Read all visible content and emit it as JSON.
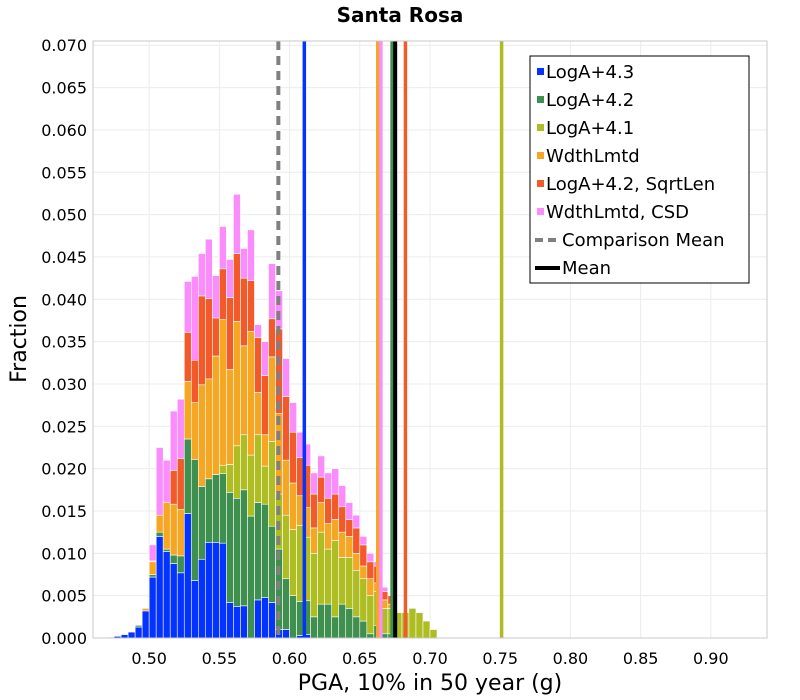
{
  "chart_data": {
    "type": "bar",
    "stacked": true,
    "title": "Santa Rosa",
    "xlabel": "PGA, 10% in 50 year (g)",
    "ylabel": "Fraction",
    "xlim": [
      0.46,
      0.94
    ],
    "ylim": [
      0.0,
      0.0705
    ],
    "x_ticks": [
      "0.50",
      "0.55",
      "0.60",
      "0.65",
      "0.70",
      "0.75",
      "0.80",
      "0.85",
      "0.90"
    ],
    "y_ticks": [
      "0.000",
      "0.005",
      "0.010",
      "0.015",
      "0.020",
      "0.025",
      "0.030",
      "0.035",
      "0.040",
      "0.045",
      "0.050",
      "0.055",
      "0.060",
      "0.065",
      "0.070"
    ],
    "legend_position": "top-right",
    "bin_start": 0.465,
    "bin_width": 0.005,
    "series": [
      {
        "name": "LogA+4.3",
        "color": "#0433ff",
        "values": [
          0.0,
          0.0001,
          0.0002,
          0.0004,
          0.0007,
          0.0013,
          0.0032,
          0.0072,
          0.012,
          0.0102,
          0.0088,
          0.0077,
          0.0147,
          0.0068,
          0.0093,
          0.0113,
          0.0113,
          0.0112,
          0.0042,
          0.0037,
          0.0038,
          0.0,
          0.0045,
          0.0048,
          0.0042,
          0.001,
          0.001,
          0.0,
          0.0003,
          0.0004,
          0.0,
          0.0,
          0.0,
          0.0,
          0.0,
          0.0,
          0.0,
          0.0,
          0.0,
          0.0,
          0.0,
          0.0,
          0.0,
          0.0,
          0.0,
          0.0,
          0.0,
          0.0
        ]
      },
      {
        "name": "LogA+4.2",
        "color": "#3f8f4f",
        "values": [
          0.0,
          0.0,
          0.0,
          0.0,
          0.0,
          0.0002,
          0.0,
          0.0003,
          0.0005,
          0.0003,
          0.001,
          0.002,
          0.0088,
          0.0143,
          0.0086,
          0.0075,
          0.008,
          0.0082,
          0.013,
          0.0128,
          0.0137,
          0.0144,
          0.0115,
          0.011,
          0.009,
          0.0095,
          0.006,
          0.005,
          0.004,
          0.004,
          0.0025,
          0.004,
          0.004,
          0.0025,
          0.004,
          0.0035,
          0.0025,
          0.002,
          0.0005,
          0.0015,
          0.0005,
          0.0005,
          0.0,
          0.0,
          0.0,
          0.0,
          0.0,
          0.0
        ]
      },
      {
        "name": "LogA+4.1",
        "color": "#adbd22",
        "values": [
          0.0,
          0.0,
          0.0,
          0.0,
          0.0,
          0.0,
          0.0,
          0.0,
          0.0,
          0.0,
          0.0,
          0.0,
          0.0,
          0.0,
          0.0,
          0.0,
          0.0,
          0.001,
          0.0033,
          0.0062,
          0.0065,
          0.0072,
          0.008,
          0.0045,
          0.01,
          0.0065,
          0.0075,
          0.0078,
          0.009,
          0.0075,
          0.0075,
          0.0085,
          0.0065,
          0.009,
          0.0055,
          0.006,
          0.0055,
          0.005,
          0.0045,
          0.004,
          0.003,
          0.003,
          0.003,
          0.003,
          0.0035,
          0.003,
          0.002,
          0.001
        ]
      },
      {
        "name": "WdthLmtd",
        "color": "#f5a623",
        "values": [
          0.0,
          0.0,
          0.0,
          0.0,
          0.0,
          0.0,
          0.0003,
          0.0015,
          0.002,
          0.0055,
          0.006,
          0.0055,
          0.0068,
          0.0067,
          0.012,
          0.0118,
          0.014,
          0.0172,
          0.0112,
          0.0147,
          0.0105,
          0.0146,
          0.005,
          0.0037,
          0.01,
          0.0095,
          0.0065,
          0.0055,
          0.0035,
          0.0035,
          0.003,
          0.0035,
          0.003,
          0.0025,
          0.003,
          0.0025,
          0.002,
          0.0015,
          0.002,
          0.001,
          0.001,
          0.0005,
          0.0,
          0.0,
          0.0,
          0.0,
          0.0,
          0.0
        ]
      },
      {
        "name": "LogA+4.2, SqrtLen",
        "color": "#f25a2a",
        "values": [
          0.0,
          0.0,
          0.0,
          0.0,
          0.0,
          0.0,
          0.0,
          0.0001,
          0.0,
          0.0,
          0.004,
          0.006,
          0.0058,
          0.005,
          0.0105,
          0.0095,
          0.0045,
          0.006,
          0.0085,
          0.008,
          0.008,
          0.006,
          0.0065,
          0.007,
          0.0045,
          0.01,
          0.0075,
          0.006,
          0.0045,
          0.005,
          0.004,
          0.003,
          0.003,
          0.003,
          0.003,
          0.002,
          0.003,
          0.0025,
          0.002,
          0.002,
          0.001,
          0.001,
          0.0,
          0.0,
          0.0,
          0.0,
          0.0,
          0.0
        ]
      },
      {
        "name": "WdthLmtd, CSD",
        "color": "#fb8cfb",
        "values": [
          0.0,
          0.0,
          0.0,
          0.0,
          0.0,
          0.0,
          0.0,
          0.0019,
          0.008,
          0.005,
          0.007,
          0.007,
          0.006,
          0.0099,
          0.005,
          0.007,
          0.005,
          0.005,
          0.0045,
          0.007,
          0.0035,
          0.006,
          0.0015,
          0.004,
          0.0065,
          0.0045,
          0.0045,
          0.0035,
          0.003,
          0.0025,
          0.0025,
          0.0025,
          0.003,
          0.003,
          0.0025,
          0.002,
          0.0015,
          0.001,
          0.001,
          0.0005,
          0.0005,
          0.0,
          0.0,
          0.0,
          0.0,
          0.0,
          0.0,
          0.0
        ]
      }
    ],
    "vertical_lines": [
      {
        "series": "LogA+4.3",
        "x": 0.6105,
        "color": "#0433ff",
        "style": "solid"
      },
      {
        "series": "WdthLmtd",
        "x": 0.6628,
        "color": "#f5a623",
        "style": "solid"
      },
      {
        "series": "WdthLmtd, CSD",
        "x": 0.665,
        "color": "#fb8cfb",
        "style": "solid"
      },
      {
        "series": "LogA+4.2",
        "x": 0.673,
        "color": "#3f8f4f",
        "style": "solid"
      },
      {
        "series": "LogA+4.2, SqrtLen",
        "x": 0.6825,
        "color": "#f25a2a",
        "style": "solid"
      },
      {
        "series": "LogA+4.1",
        "x": 0.751,
        "color": "#adbd22",
        "style": "solid"
      },
      {
        "series": "Comparison Mean",
        "x": 0.592,
        "color": "#808080",
        "style": "dashed"
      },
      {
        "series": "Mean",
        "x": 0.6752,
        "color": "#000000",
        "style": "solid"
      }
    ],
    "legend": [
      {
        "label": "LogA+4.3",
        "color": "#0433ff",
        "marker": "square"
      },
      {
        "label": "LogA+4.2",
        "color": "#3f8f4f",
        "marker": "square"
      },
      {
        "label": "LogA+4.1",
        "color": "#adbd22",
        "marker": "square"
      },
      {
        "label": "WdthLmtd",
        "color": "#f5a623",
        "marker": "square"
      },
      {
        "label": "LogA+4.2, SqrtLen",
        "color": "#f25a2a",
        "marker": "square"
      },
      {
        "label": "WdthLmtd, CSD",
        "color": "#fb8cfb",
        "marker": "square"
      },
      {
        "label": "Comparison Mean",
        "color": "#808080",
        "marker": "dashed-line"
      },
      {
        "label": "Mean",
        "color": "#000000",
        "marker": "line"
      }
    ]
  }
}
